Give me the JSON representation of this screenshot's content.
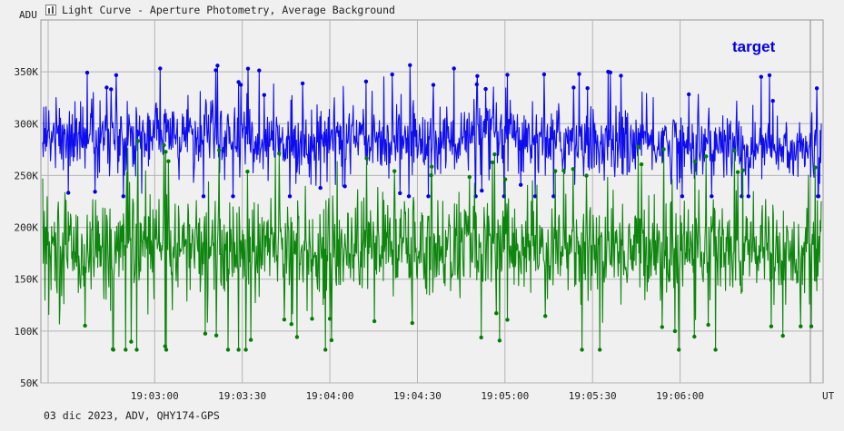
{
  "window": {
    "title": "Light Curve - Aperture Photometry, Average Background",
    "title_icon": "light-curve-icon",
    "footer": "03 dic 2023, ADV, QHY174-GPS"
  },
  "chart_data": {
    "type": "line",
    "title": "Light Curve - Aperture Photometry, Average Background",
    "ylabel": "ADU",
    "xlabel": "UT",
    "ylim": [
      50000,
      400000
    ],
    "y_ticks": [
      {
        "value": 50000,
        "label": "50K"
      },
      {
        "value": 100000,
        "label": "100K"
      },
      {
        "value": 150000,
        "label": "150K"
      },
      {
        "value": 200000,
        "label": "200K"
      },
      {
        "value": 250000,
        "label": "250K"
      },
      {
        "value": 300000,
        "label": "300K"
      },
      {
        "value": 350000,
        "label": "350K"
      }
    ],
    "xlim": [
      "19:02:21",
      "19:06:49"
    ],
    "x_ticks": [
      "19:03:00",
      "19:03:30",
      "19:04:00",
      "19:04:30",
      "19:05:00",
      "19:05:30",
      "19:06:00"
    ],
    "grid": true,
    "annotation": "target",
    "colors": {
      "target": "#0000ee",
      "comparison": "#008000",
      "grid": "#b4b4b4",
      "background": "#f0f0f0"
    },
    "series": [
      {
        "key": "target",
        "color": "#0000ee",
        "approx_mean": [
          288000,
          285000,
          290000,
          288000,
          280000,
          285000,
          287000,
          283000,
          286000,
          287000,
          280000,
          282000,
          279000,
          276000,
          274000
        ],
        "approx_range": [
          230000,
          385000
        ]
      },
      {
        "key": "comparison",
        "color": "#008000",
        "approx_mean": [
          182000,
          180000,
          183000,
          182000,
          180000,
          181000,
          183000,
          180000,
          182000,
          181000,
          179000,
          180000,
          180000,
          178000,
          176000
        ],
        "approx_range": [
          82000,
          305000
        ]
      }
    ]
  }
}
